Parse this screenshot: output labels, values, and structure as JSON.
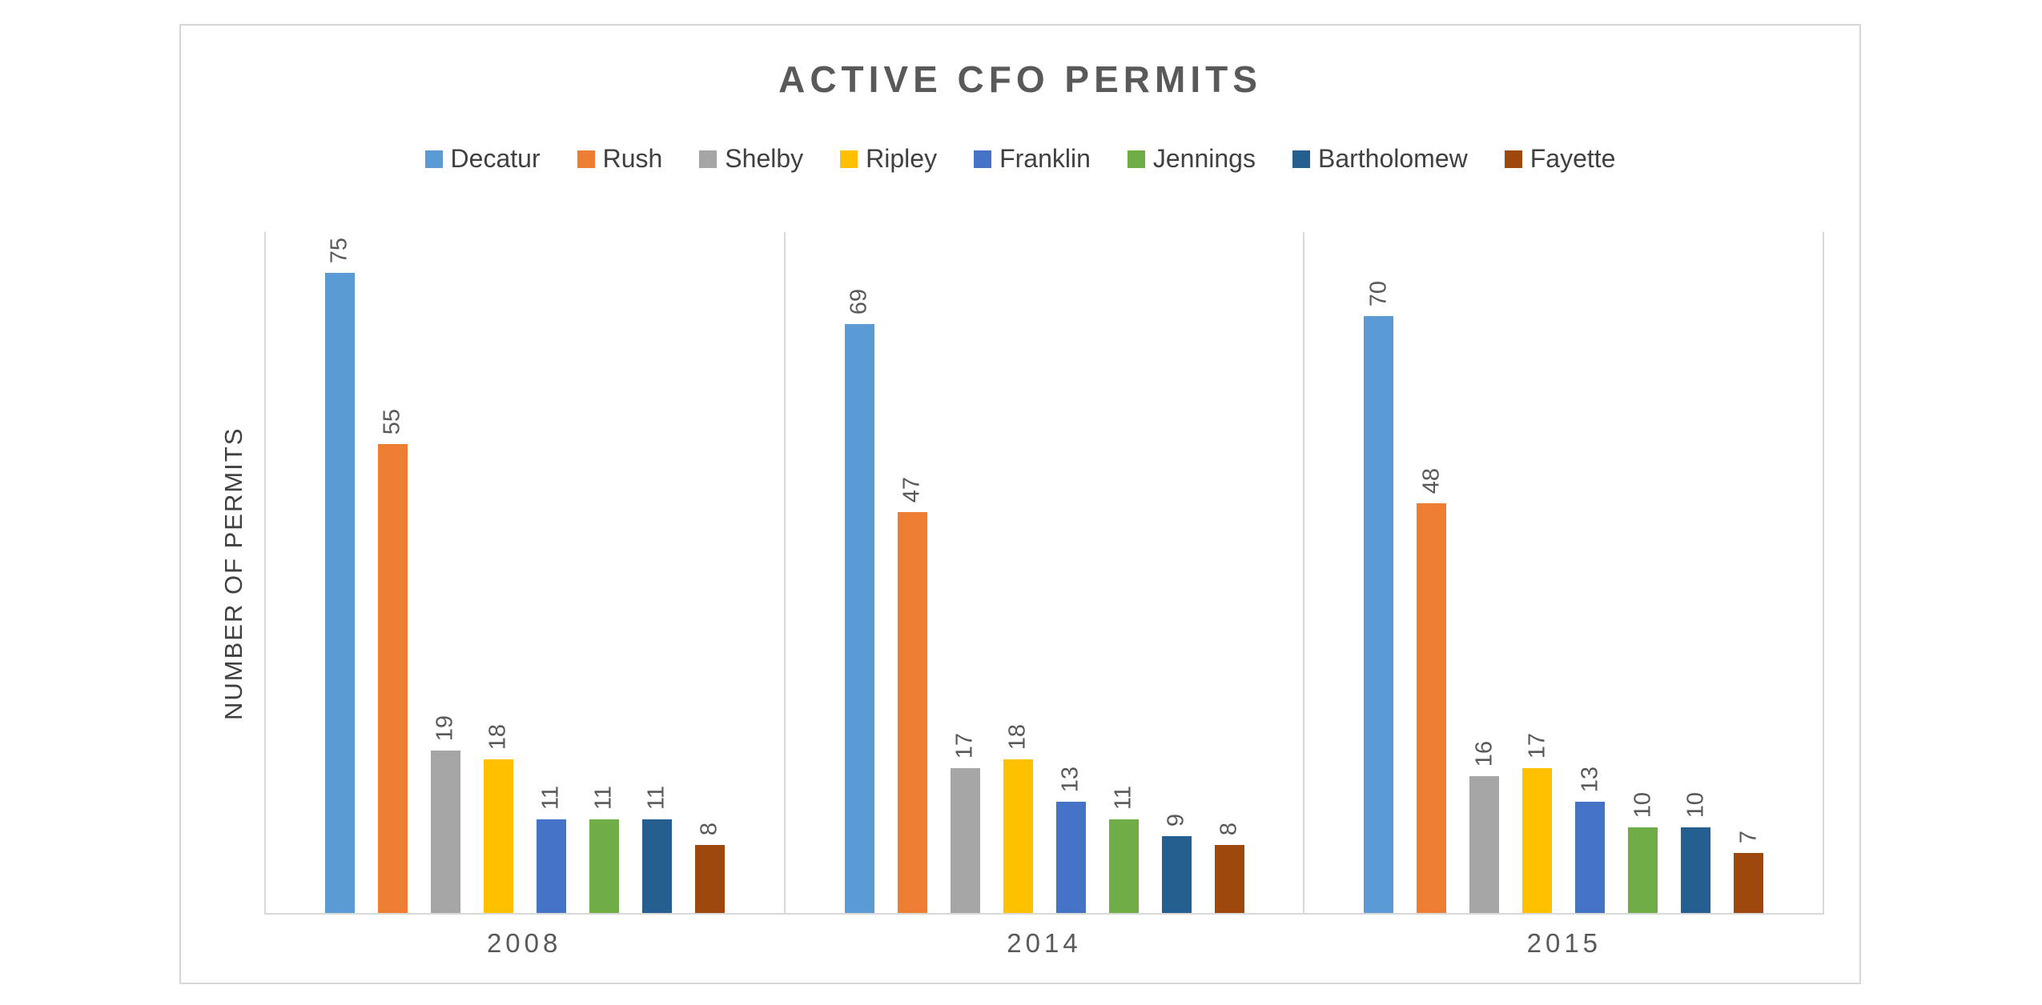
{
  "chart_data": {
    "type": "bar",
    "title": "ACTIVE CFO PERMITS",
    "ylabel": "NUMBER OF PERMITS",
    "xlabel": "",
    "categories": [
      "2008",
      "2014",
      "2015"
    ],
    "series": [
      {
        "name": "Decatur",
        "color": "#5B9BD5",
        "values": [
          75,
          69,
          70
        ]
      },
      {
        "name": "Rush",
        "color": "#ED7D31",
        "values": [
          55,
          47,
          48
        ]
      },
      {
        "name": "Shelby",
        "color": "#A5A5A5",
        "values": [
          19,
          17,
          16
        ]
      },
      {
        "name": "Ripley",
        "color": "#FFC000",
        "values": [
          18,
          18,
          17
        ]
      },
      {
        "name": "Franklin",
        "color": "#4472C4",
        "values": [
          11,
          13,
          13
        ]
      },
      {
        "name": "Jennings",
        "color": "#70AD47",
        "values": [
          11,
          11,
          10
        ]
      },
      {
        "name": "Bartholomew",
        "color": "#255E91",
        "values": [
          11,
          9,
          10
        ]
      },
      {
        "name": "Fayette",
        "color": "#9E480E",
        "values": [
          8,
          8,
          7
        ]
      }
    ],
    "ylim": [
      0,
      80
    ],
    "data_labels_rotated": true,
    "legend_position": "top",
    "grid": false,
    "axis_line_color": "#D9D9D9",
    "text_color": "#595959"
  }
}
